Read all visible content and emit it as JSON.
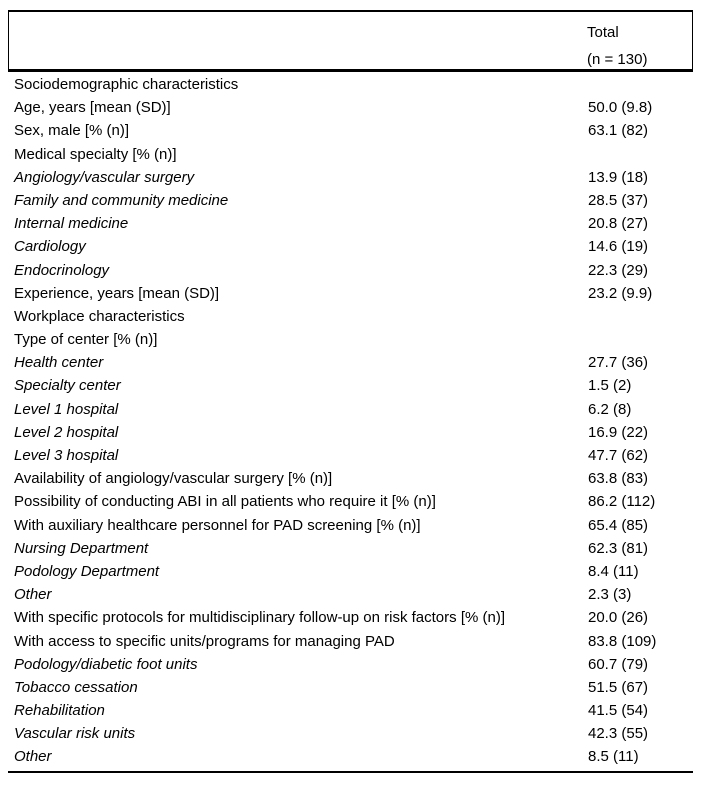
{
  "table": {
    "header": {
      "col2_line1": "Total",
      "col2_line2": "(n = 130)"
    },
    "rows": [
      {
        "label": "Sociodemographic characteristics",
        "value": "",
        "italic": false
      },
      {
        "label": "Age, years [mean (SD)]",
        "value": "50.0 (9.8)",
        "italic": false
      },
      {
        "label": "Sex, male [% (n)]",
        "value": "63.1 (82)",
        "italic": false
      },
      {
        "label": "Medical specialty [% (n)]",
        "value": "",
        "italic": false
      },
      {
        "label": "Angiology/vascular surgery",
        "value": "13.9 (18)",
        "italic": true
      },
      {
        "label": "Family and community medicine",
        "value": "28.5 (37)",
        "italic": true
      },
      {
        "label": "Internal medicine",
        "value": "20.8 (27)",
        "italic": true
      },
      {
        "label": "Cardiology",
        "value": "14.6 (19)",
        "italic": true
      },
      {
        "label": "Endocrinology",
        "value": "22.3 (29)",
        "italic": true
      },
      {
        "label": "Experience, years [mean (SD)]",
        "value": "23.2 (9.9)",
        "italic": false
      },
      {
        "label": "Workplace characteristics",
        "value": "",
        "italic": false
      },
      {
        "label": "Type of center [% (n)]",
        "value": "",
        "italic": false
      },
      {
        "label": "Health center",
        "value": "27.7 (36)",
        "italic": true
      },
      {
        "label": "Specialty center",
        "value": "1.5 (2)",
        "italic": true
      },
      {
        "label": "Level 1 hospital",
        "value": "6.2 (8)",
        "italic": true
      },
      {
        "label": "Level 2 hospital",
        "value": "16.9 (22)",
        "italic": true
      },
      {
        "label": "Level 3 hospital",
        "value": "47.7 (62)",
        "italic": true
      },
      {
        "label": "Availability of angiology/vascular surgery [% (n)]",
        "value": "63.8 (83)",
        "italic": false
      },
      {
        "label": "Possibility of conducting ABI in all patients who require it [% (n)]",
        "value": "86.2 (112)",
        "italic": false
      },
      {
        "label": "With auxiliary healthcare personnel for PAD screening [% (n)]",
        "value": "65.4 (85)",
        "italic": false
      },
      {
        "label": "Nursing Department",
        "value": "62.3 (81)",
        "italic": true
      },
      {
        "label": "Podology Department",
        "value": "8.4 (11)",
        "italic": true
      },
      {
        "label": "Other",
        "value": "2.3 (3)",
        "italic": true
      },
      {
        "label": "With specific protocols for multidisciplinary follow-up on risk factors [% (n)]",
        "value": "20.0 (26)",
        "italic": false
      },
      {
        "label": "With access to specific units/programs for managing PAD",
        "value": "83.8 (109)",
        "italic": false
      },
      {
        "label": "Podology/diabetic foot units",
        "value": "60.7 (79)",
        "italic": true
      },
      {
        "label": "Tobacco cessation",
        "value": "51.5 (67)",
        "italic": true
      },
      {
        "label": "Rehabilitation",
        "value": "41.5 (54)",
        "italic": true
      },
      {
        "label": "Vascular risk units",
        "value": "42.3 (55)",
        "italic": true
      },
      {
        "label": "Other",
        "value": "8.5 (11)",
        "italic": true
      }
    ]
  }
}
